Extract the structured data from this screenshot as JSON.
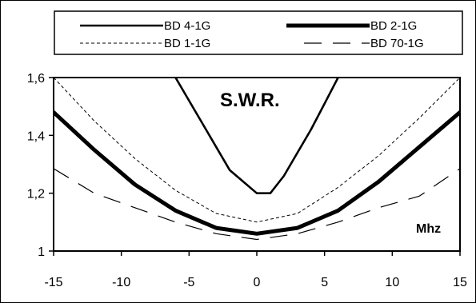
{
  "chart_data": {
    "type": "line",
    "title": "S.W.R.",
    "unit_label": "Mhz",
    "xlim": [
      -15,
      15
    ],
    "ylim": [
      1.0,
      1.6
    ],
    "x_ticks": [
      "-15",
      "-10",
      "-5",
      "0",
      "5",
      "10",
      "15"
    ],
    "y_ticks": [
      "1",
      "1,2",
      "1,4",
      "1,6"
    ],
    "grid": false,
    "legend_position": "top",
    "series": [
      {
        "name": "BD 4-1G",
        "style": "solid",
        "weight": "medium",
        "x": [
          -6,
          -5,
          -4,
          -3,
          -2,
          -1,
          0,
          1,
          2,
          3,
          4,
          5,
          6
        ],
        "y": [
          1.6,
          1.52,
          1.44,
          1.36,
          1.28,
          1.24,
          1.2,
          1.2,
          1.26,
          1.34,
          1.42,
          1.51,
          1.6
        ]
      },
      {
        "name": "BD 2-1G",
        "style": "solid",
        "weight": "heavy",
        "x": [
          -15,
          -12,
          -9,
          -6,
          -3,
          0,
          3,
          6,
          9,
          12,
          15
        ],
        "y": [
          1.48,
          1.35,
          1.23,
          1.14,
          1.08,
          1.06,
          1.08,
          1.14,
          1.24,
          1.36,
          1.48
        ]
      },
      {
        "name": "BD 1-1G",
        "style": "dashed",
        "weight": "thin",
        "x": [
          -15,
          -12,
          -9,
          -6,
          -3,
          0,
          3,
          6,
          9,
          12,
          15
        ],
        "y": [
          1.6,
          1.45,
          1.32,
          1.21,
          1.13,
          1.1,
          1.13,
          1.22,
          1.33,
          1.46,
          1.6
        ]
      },
      {
        "name": "BD 70-1G",
        "style": "long-dash",
        "weight": "thin",
        "x": [
          -15,
          -12,
          -9,
          -6,
          -3,
          0,
          3,
          6,
          9,
          12,
          15
        ],
        "y": [
          1.285,
          1.2,
          1.15,
          1.1,
          1.06,
          1.04,
          1.06,
          1.1,
          1.15,
          1.19,
          1.285
        ]
      }
    ]
  }
}
